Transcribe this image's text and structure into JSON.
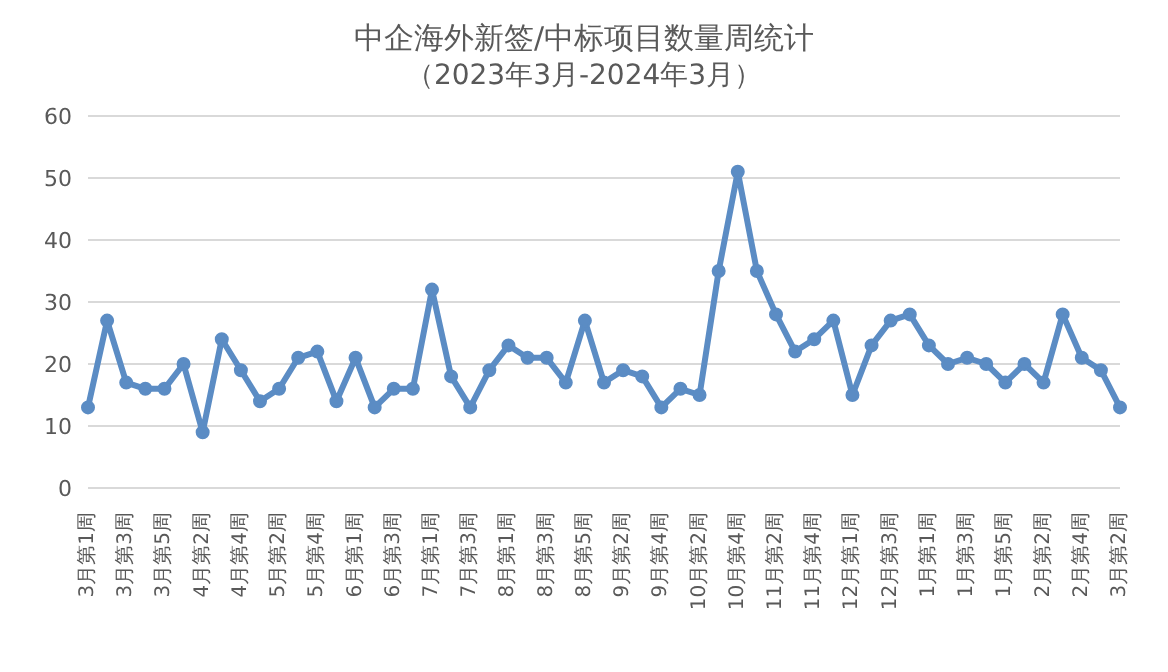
{
  "chart_data": {
    "type": "line",
    "title": "中企海外新签/中标项目数量周统计",
    "subtitle": "（2023年3月-2024年3月）",
    "categories": [
      "3月第1周",
      null,
      "3月第3周",
      null,
      "3月第5周",
      null,
      "4月第2周",
      null,
      "4月第4周",
      null,
      "5月第2周",
      null,
      "5月第4周",
      null,
      "6月第1周",
      null,
      "6月第3周",
      null,
      "7月第1周",
      null,
      "7月第3周",
      null,
      "8月第1周",
      null,
      "8月第3周",
      null,
      "8月第5周",
      null,
      "9月第2周",
      null,
      "9月第4周",
      null,
      "10月第2周",
      null,
      "10月第4周",
      null,
      "11月第2周",
      null,
      "11月第4周",
      null,
      "12月第1周",
      null,
      "12月第3周",
      null,
      "1月第1周",
      null,
      "1月第3周",
      null,
      "1月第5周",
      null,
      "2月第2周",
      null,
      "2月第4周",
      null,
      "3月第2周"
    ],
    "series": [
      {
        "color": "#5b8cc4",
        "values": [
          13,
          27,
          17,
          16,
          16,
          20,
          9,
          24,
          19,
          14,
          16,
          21,
          22,
          14,
          21,
          13,
          16,
          16,
          32,
          18,
          13,
          19,
          23,
          21,
          21,
          17,
          27,
          17,
          19,
          18,
          13,
          16,
          15,
          35,
          51,
          35,
          28,
          22,
          24,
          27,
          15,
          23,
          27,
          28,
          23,
          20,
          21,
          20,
          17,
          20,
          17,
          28,
          21,
          19,
          13
        ]
      }
    ],
    "ylim": [
      0,
      60
    ],
    "yticks": [
      0,
      10,
      20,
      30,
      40,
      50,
      60
    ],
    "grid": "y",
    "marker": "circle",
    "line_style": "solid",
    "legend": false
  }
}
